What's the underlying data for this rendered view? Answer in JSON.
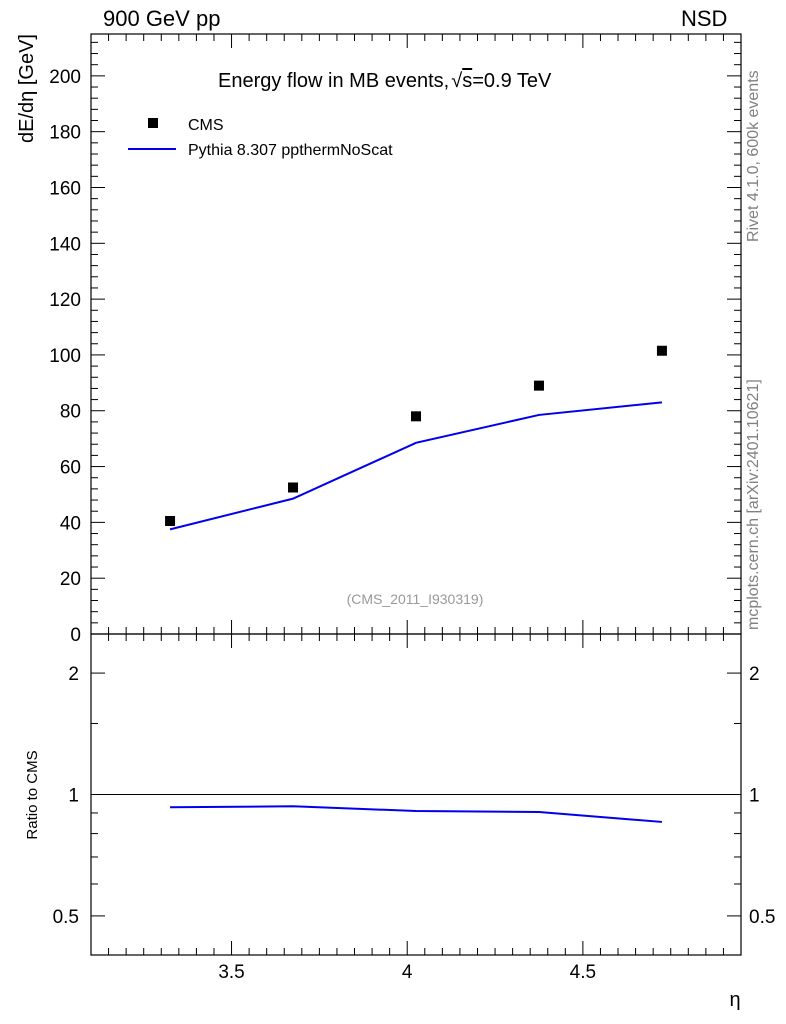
{
  "header": {
    "left": "900 GeV pp",
    "right": "NSD"
  },
  "side_labels": {
    "top": "Rivet 4.1.0,  600k events",
    "bottom": "mcplots.cern.ch [arXiv:2401.10621]"
  },
  "colors": {
    "data": "#000000",
    "mc": "#0000ee",
    "ref_line": "#000000",
    "watermark": "#999999"
  },
  "chart_data": {
    "type": "scatter",
    "title": "Energy flow in MB events,",
    "title_sqrt_s": "s",
    "title_energy": "=0.9 TeV",
    "watermark": "(CMS_2011_I930319)",
    "xlabel": "η",
    "xlim": [
      3.1,
      4.95
    ],
    "x_ticks": [
      "3.5",
      "4",
      "4.5"
    ],
    "top_panel": {
      "ylabel": "dE/dη [GeV]",
      "ylim": [
        0,
        215
      ],
      "y_ticks": [
        "0",
        "20",
        "40",
        "60",
        "80",
        "100",
        "120",
        "140",
        "160",
        "180",
        "200"
      ],
      "series": [
        {
          "name": "CMS",
          "style": "markers",
          "x": [
            3.325,
            3.675,
            4.025,
            4.375,
            4.725
          ],
          "y": [
            40.5,
            52.5,
            78.0,
            89.0,
            101.5
          ]
        },
        {
          "name": "Pythia 8.307 ppthermNoScat",
          "style": "line",
          "x": [
            3.325,
            3.675,
            4.025,
            4.375,
            4.725
          ],
          "y": [
            37.5,
            48.5,
            68.5,
            78.5,
            83.0
          ]
        }
      ]
    },
    "ratio_panel": {
      "ylabel": "Ratio to CMS",
      "scale": "log",
      "ylim": [
        0.4,
        2.5
      ],
      "y_ticks": [
        "0.5",
        "1",
        "2"
      ],
      "reference": 1,
      "series": [
        {
          "name": "Pythia 8.307 ppthermNoScat",
          "x": [
            3.325,
            3.675,
            4.025,
            4.375,
            4.725
          ],
          "y": [
            0.93,
            0.935,
            0.91,
            0.905,
            0.855
          ]
        }
      ]
    }
  }
}
